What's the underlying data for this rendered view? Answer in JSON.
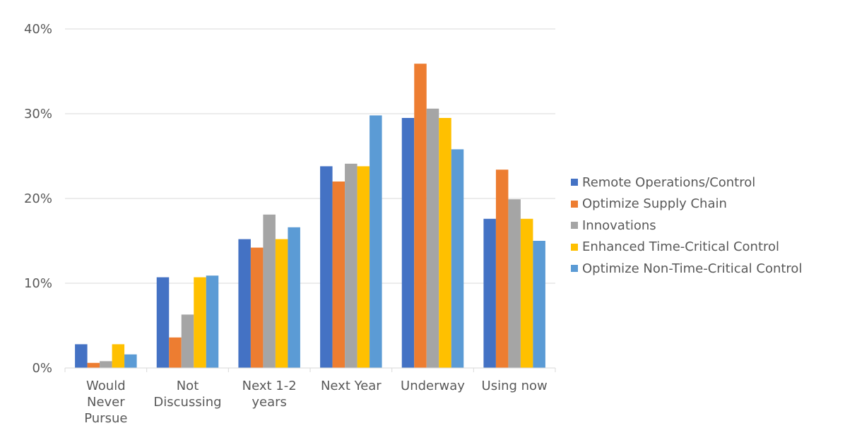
{
  "chart_data": {
    "type": "bar",
    "categories": [
      [
        "Would",
        "Never",
        "Pursue"
      ],
      [
        "Not",
        "Discussing"
      ],
      [
        "Next 1-2",
        "years"
      ],
      [
        "Next Year"
      ],
      [
        "Underway"
      ],
      [
        "Using now"
      ]
    ],
    "series": [
      {
        "name": "Remote Operations/Control",
        "color": "#4472C4",
        "values": [
          2.8,
          10.7,
          15.2,
          23.8,
          29.5,
          17.6
        ]
      },
      {
        "name": "Optimize Supply Chain",
        "color": "#ED7D31",
        "values": [
          0.6,
          3.6,
          14.2,
          22.0,
          35.9,
          23.4
        ]
      },
      {
        "name": "Innovations",
        "color": "#A5A5A5",
        "values": [
          0.8,
          6.3,
          18.1,
          24.1,
          30.6,
          19.9
        ]
      },
      {
        "name": "Enhanced Time-Critical Control",
        "color": "#FFC000",
        "values": [
          2.8,
          10.7,
          15.2,
          23.8,
          29.5,
          17.6
        ]
      },
      {
        "name": "Optimize Non-Time-Critical Control",
        "color": "#5B9BD5",
        "values": [
          1.6,
          10.9,
          16.6,
          29.8,
          25.8,
          15.0
        ]
      }
    ],
    "y_ticks": [
      "0%",
      "10%",
      "20%",
      "30%",
      "40%"
    ],
    "ylim": [
      0,
      40
    ],
    "grid": true,
    "legend_position": "right"
  }
}
